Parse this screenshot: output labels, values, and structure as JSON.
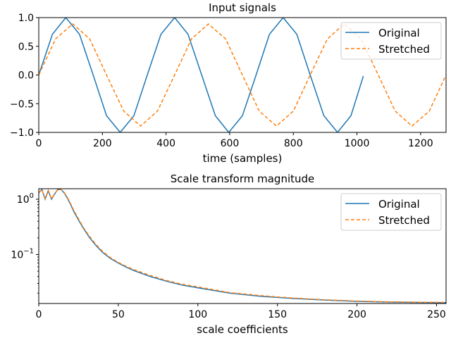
{
  "chart_data": [
    {
      "type": "line",
      "title": "Input signals",
      "xlabel": "time (samples)",
      "ylabel": "",
      "xlim": [
        0,
        1280
      ],
      "ylim": [
        -1.0,
        1.0
      ],
      "x_ticks": [
        0,
        200,
        400,
        600,
        800,
        1000,
        1200
      ],
      "y_ticks": [
        -1.0,
        -0.5,
        0.0,
        0.5,
        1.0
      ],
      "x_tick_labels": [
        "0",
        "200",
        "400",
        "600",
        "800",
        "1000",
        "1200"
      ],
      "y_tick_labels": [
        "−1.0",
        "−0.5",
        "0.0",
        "0.5",
        "1.0"
      ],
      "legend_position": "top-right",
      "grid": false,
      "series": [
        {
          "name": "Original",
          "style": "solid",
          "color": "#1f77b4",
          "x": [
            0,
            43,
            85,
            128,
            171,
            213,
            256,
            299,
            341,
            384,
            427,
            469,
            512,
            555,
            597,
            640,
            683,
            725,
            768,
            811,
            853,
            896,
            939,
            981,
            1020
          ],
          "y": [
            0.0,
            0.71,
            1.0,
            0.71,
            0.0,
            -0.71,
            -1.0,
            -0.71,
            0.0,
            0.71,
            1.0,
            0.71,
            0.0,
            -0.71,
            -1.0,
            -0.71,
            0.0,
            0.71,
            1.0,
            0.71,
            0.0,
            -0.71,
            -1.0,
            -0.71,
            -0.02
          ]
        },
        {
          "name": "Stretched",
          "style": "dashed",
          "color": "#ff7f0e",
          "x": [
            0,
            53,
            107,
            160,
            213,
            267,
            320,
            373,
            427,
            480,
            533,
            587,
            640,
            693,
            747,
            800,
            853,
            907,
            960,
            1013,
            1067,
            1120,
            1173,
            1227,
            1280
          ],
          "y": [
            0.0,
            0.63,
            0.89,
            0.63,
            0.0,
            -0.63,
            -0.89,
            -0.63,
            0.0,
            0.63,
            0.89,
            0.63,
            0.0,
            -0.63,
            -0.89,
            -0.63,
            0.0,
            0.63,
            0.89,
            0.63,
            0.0,
            -0.63,
            -0.89,
            -0.63,
            0.0
          ]
        }
      ]
    },
    {
      "type": "line",
      "title": "Scale transform magnitude",
      "xlabel": "scale coefficients",
      "ylabel": "",
      "xlim": [
        0,
        256
      ],
      "ylim": [
        0.013,
        1.55
      ],
      "yscale": "log",
      "x_ticks": [
        0,
        50,
        100,
        150,
        200,
        250
      ],
      "x_tick_labels": [
        "0",
        "50",
        "100",
        "150",
        "200",
        "250"
      ],
      "y_ticks": [
        0.1,
        1
      ],
      "y_tick_labels": [
        {
          "base": "10",
          "exp": "−1"
        },
        {
          "base": "10",
          "exp": "0"
        }
      ],
      "legend_position": "top-right",
      "grid": false,
      "series": [
        {
          "name": "Original",
          "style": "solid",
          "color": "#1f77b4",
          "x": [
            0,
            2,
            4,
            6,
            8,
            10,
            12,
            14,
            16,
            18,
            20,
            22,
            25,
            28,
            32,
            36,
            40,
            45,
            50,
            55,
            60,
            70,
            80,
            90,
            100,
            120,
            140,
            160,
            180,
            200,
            220,
            240,
            256
          ],
          "y": [
            1.3,
            1.5,
            1.0,
            1.42,
            1.0,
            1.25,
            1.5,
            1.5,
            1.3,
            1.05,
            0.8,
            0.6,
            0.42,
            0.3,
            0.2,
            0.145,
            0.11,
            0.085,
            0.07,
            0.059,
            0.051,
            0.04,
            0.033,
            0.028,
            0.025,
            0.02,
            0.0175,
            0.016,
            0.015,
            0.0142,
            0.0138,
            0.0136,
            0.0135
          ]
        },
        {
          "name": "Stretched",
          "style": "dashed",
          "color": "#ff7f0e",
          "x": [
            0,
            2,
            4,
            6,
            8,
            10,
            12,
            14,
            16,
            18,
            20,
            22,
            25,
            28,
            32,
            36,
            40,
            45,
            50,
            55,
            60,
            70,
            80,
            90,
            100,
            120,
            140,
            160,
            180,
            200,
            220,
            240,
            256
          ],
          "y": [
            1.32,
            1.5,
            1.02,
            1.44,
            1.02,
            1.27,
            1.5,
            1.5,
            1.33,
            1.08,
            0.83,
            0.63,
            0.44,
            0.31,
            0.21,
            0.152,
            0.115,
            0.088,
            0.072,
            0.061,
            0.053,
            0.042,
            0.034,
            0.029,
            0.026,
            0.0205,
            0.018,
            0.0163,
            0.0152,
            0.0144,
            0.0139,
            0.0137,
            0.0136
          ]
        }
      ]
    }
  ]
}
